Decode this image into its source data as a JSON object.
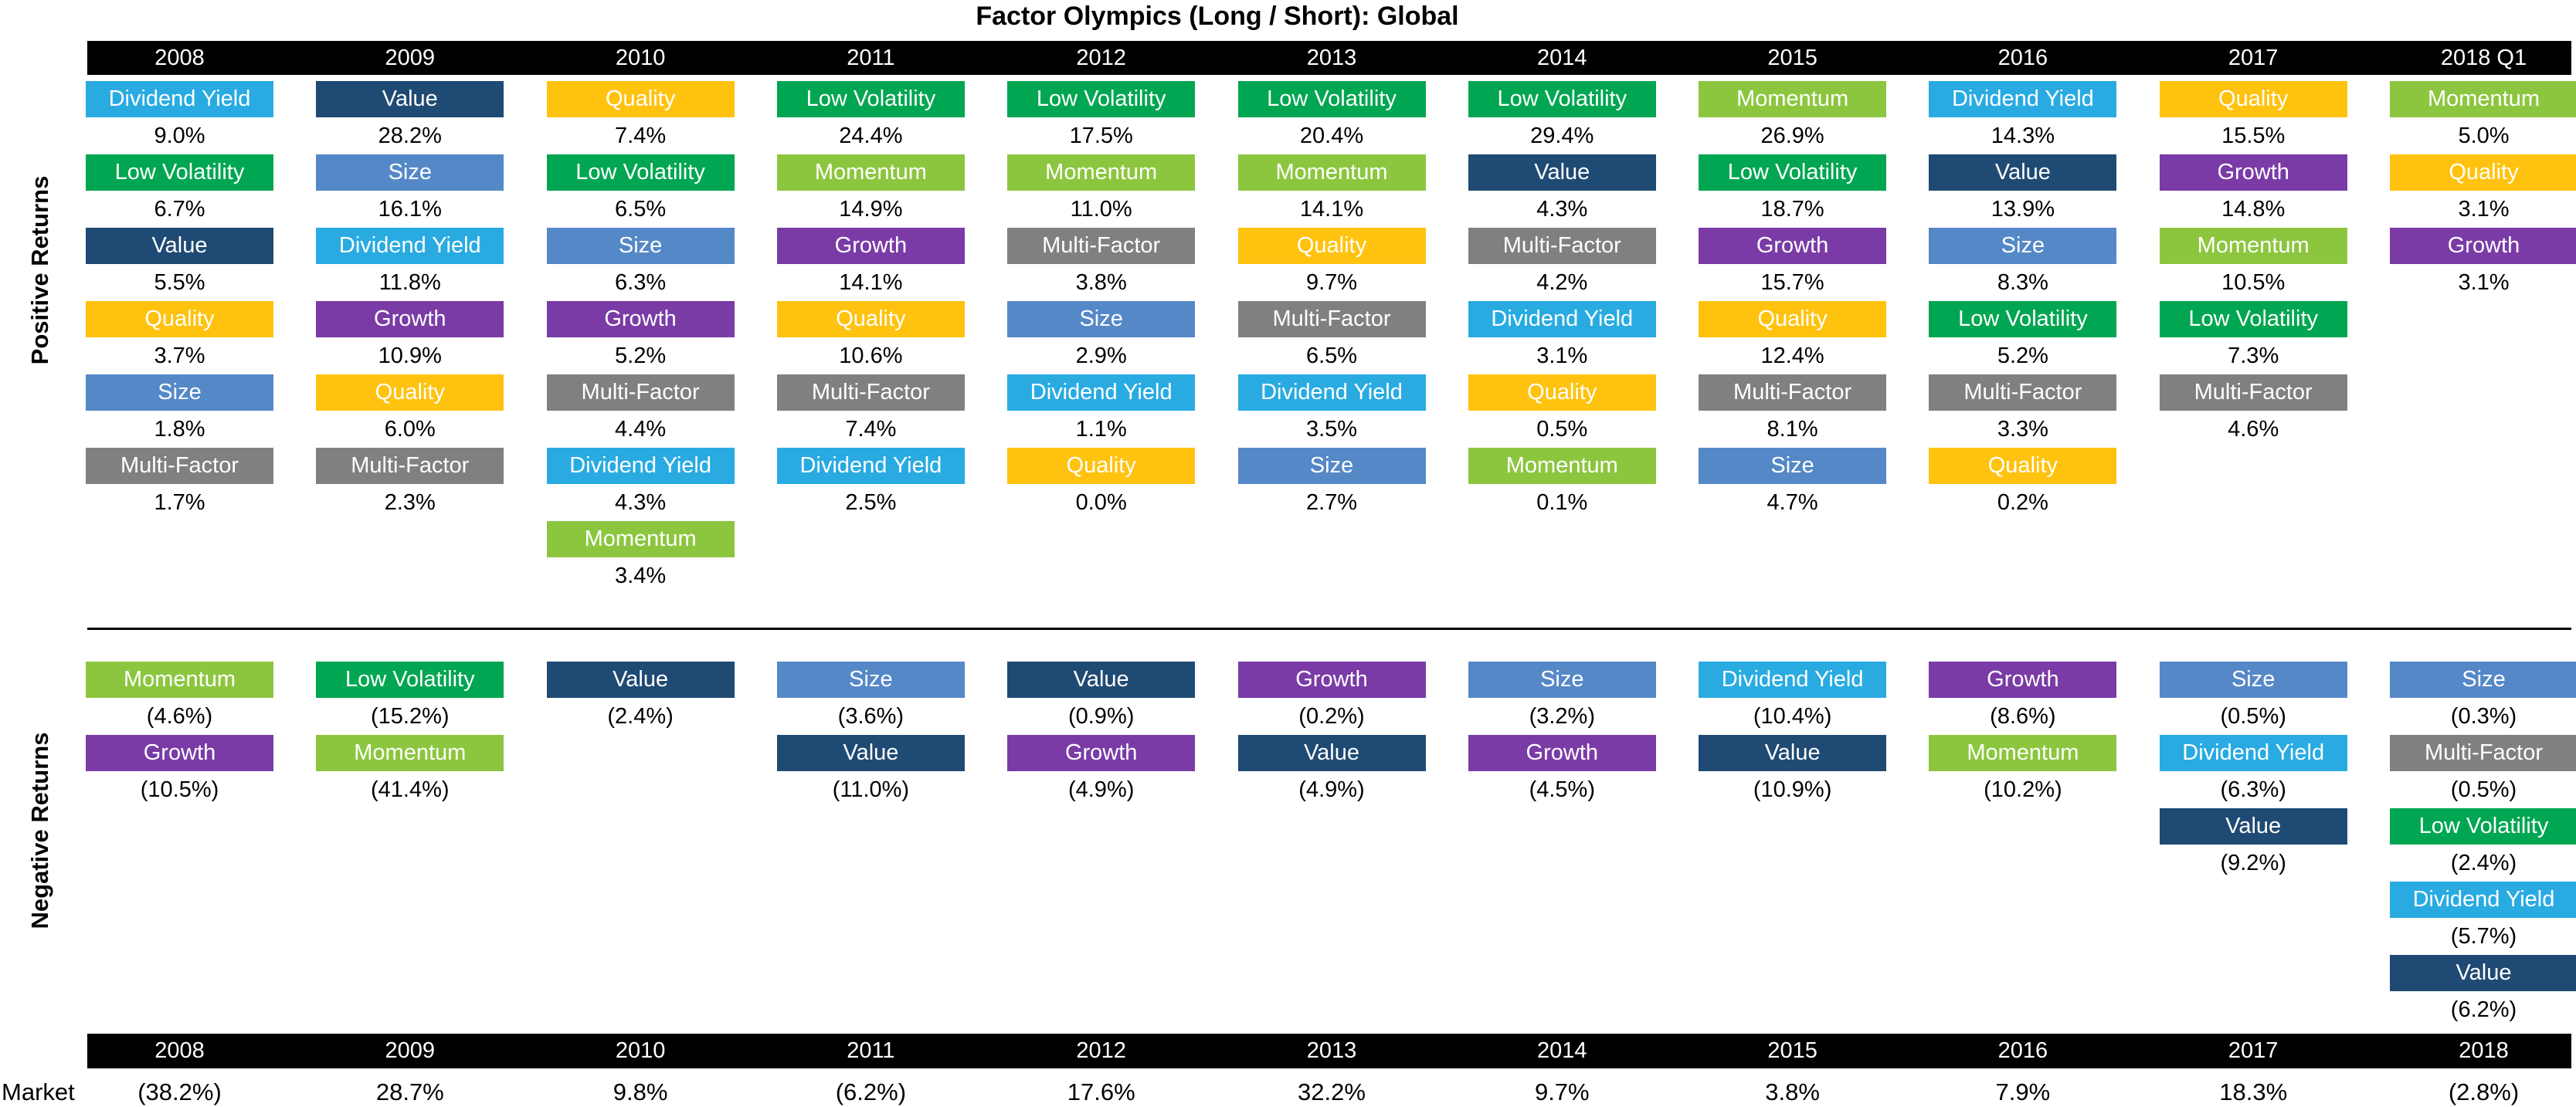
{
  "chart_data": {
    "type": "table",
    "title": "Factor Olympics (Long / Short): Global",
    "section_labels": {
      "positive": "Positive Returns",
      "negative": "Negative Returns"
    },
    "market_row_label": "Market",
    "legend_position": "none",
    "grid": false,
    "colors": {
      "axis_bar_background": "#000000",
      "axis_bar_text": "#FFFFFF",
      "tile_text": "#FFFFFF",
      "value_text": "#000000",
      "divider": "#000000",
      "background": "#FFFFFF"
    },
    "factor_colors": {
      "Dividend Yield": "#29ABE2",
      "Low Volatility": "#00A651",
      "Value": "#1F4A73",
      "Quality": "#FFC20E",
      "Size": "#5588C7",
      "Multi-Factor": "#808080",
      "Growth": "#7A3BA6",
      "Momentum": "#8CC63F"
    },
    "columns": [
      {
        "year_top": "2008",
        "year_bottom": "2008",
        "market": "(38.2%)",
        "positive": [
          {
            "factor": "Dividend Yield",
            "value": "9.0%"
          },
          {
            "factor": "Low Volatility",
            "value": "6.7%"
          },
          {
            "factor": "Value",
            "value": "5.5%"
          },
          {
            "factor": "Quality",
            "value": "3.7%"
          },
          {
            "factor": "Size",
            "value": "1.8%"
          },
          {
            "factor": "Multi-Factor",
            "value": "1.7%"
          }
        ],
        "negative": [
          {
            "factor": "Momentum",
            "value": "(4.6%)"
          },
          {
            "factor": "Growth",
            "value": "(10.5%)"
          }
        ]
      },
      {
        "year_top": "2009",
        "year_bottom": "2009",
        "market": "28.7%",
        "positive": [
          {
            "factor": "Value",
            "value": "28.2%"
          },
          {
            "factor": "Size",
            "value": "16.1%"
          },
          {
            "factor": "Dividend Yield",
            "value": "11.8%"
          },
          {
            "factor": "Growth",
            "value": "10.9%"
          },
          {
            "factor": "Quality",
            "value": "6.0%"
          },
          {
            "factor": "Multi-Factor",
            "value": "2.3%"
          }
        ],
        "negative": [
          {
            "factor": "Low Volatility",
            "value": "(15.2%)"
          },
          {
            "factor": "Momentum",
            "value": "(41.4%)"
          }
        ]
      },
      {
        "year_top": "2010",
        "year_bottom": "2010",
        "market": "9.8%",
        "positive": [
          {
            "factor": "Quality",
            "value": "7.4%"
          },
          {
            "factor": "Low Volatility",
            "value": "6.5%"
          },
          {
            "factor": "Size",
            "value": "6.3%"
          },
          {
            "factor": "Growth",
            "value": "5.2%"
          },
          {
            "factor": "Multi-Factor",
            "value": "4.4%"
          },
          {
            "factor": "Dividend Yield",
            "value": "4.3%"
          },
          {
            "factor": "Momentum",
            "value": "3.4%"
          }
        ],
        "negative": [
          {
            "factor": "Value",
            "value": "(2.4%)"
          }
        ]
      },
      {
        "year_top": "2011",
        "year_bottom": "2011",
        "market": "(6.2%)",
        "positive": [
          {
            "factor": "Low Volatility",
            "value": "24.4%"
          },
          {
            "factor": "Momentum",
            "value": "14.9%"
          },
          {
            "factor": "Growth",
            "value": "14.1%"
          },
          {
            "factor": "Quality",
            "value": "10.6%"
          },
          {
            "factor": "Multi-Factor",
            "value": "7.4%"
          },
          {
            "factor": "Dividend Yield",
            "value": "2.5%"
          }
        ],
        "negative": [
          {
            "factor": "Size",
            "value": "(3.6%)"
          },
          {
            "factor": "Value",
            "value": "(11.0%)"
          }
        ]
      },
      {
        "year_top": "2012",
        "year_bottom": "2012",
        "market": "17.6%",
        "positive": [
          {
            "factor": "Low Volatility",
            "value": "17.5%"
          },
          {
            "factor": "Momentum",
            "value": "11.0%"
          },
          {
            "factor": "Multi-Factor",
            "value": "3.8%"
          },
          {
            "factor": "Size",
            "value": "2.9%"
          },
          {
            "factor": "Dividend Yield",
            "value": "1.1%"
          },
          {
            "factor": "Quality",
            "value": "0.0%"
          }
        ],
        "negative": [
          {
            "factor": "Value",
            "value": "(0.9%)"
          },
          {
            "factor": "Growth",
            "value": "(4.9%)"
          }
        ]
      },
      {
        "year_top": "2013",
        "year_bottom": "2013",
        "market": "32.2%",
        "positive": [
          {
            "factor": "Low Volatility",
            "value": "20.4%"
          },
          {
            "factor": "Momentum",
            "value": "14.1%"
          },
          {
            "factor": "Quality",
            "value": "9.7%"
          },
          {
            "factor": "Multi-Factor",
            "value": "6.5%"
          },
          {
            "factor": "Dividend Yield",
            "value": "3.5%"
          },
          {
            "factor": "Size",
            "value": "2.7%"
          }
        ],
        "negative": [
          {
            "factor": "Growth",
            "value": "(0.2%)"
          },
          {
            "factor": "Value",
            "value": "(4.9%)"
          }
        ]
      },
      {
        "year_top": "2014",
        "year_bottom": "2014",
        "market": "9.7%",
        "positive": [
          {
            "factor": "Low Volatility",
            "value": "29.4%"
          },
          {
            "factor": "Value",
            "value": "4.3%"
          },
          {
            "factor": "Multi-Factor",
            "value": "4.2%"
          },
          {
            "factor": "Dividend Yield",
            "value": "3.1%"
          },
          {
            "factor": "Quality",
            "value": "0.5%"
          },
          {
            "factor": "Momentum",
            "value": "0.1%"
          }
        ],
        "negative": [
          {
            "factor": "Size",
            "value": "(3.2%)"
          },
          {
            "factor": "Growth",
            "value": "(4.5%)"
          }
        ]
      },
      {
        "year_top": "2015",
        "year_bottom": "2015",
        "market": "3.8%",
        "positive": [
          {
            "factor": "Momentum",
            "value": "26.9%"
          },
          {
            "factor": "Low Volatility",
            "value": "18.7%"
          },
          {
            "factor": "Growth",
            "value": "15.7%"
          },
          {
            "factor": "Quality",
            "value": "12.4%"
          },
          {
            "factor": "Multi-Factor",
            "value": "8.1%"
          },
          {
            "factor": "Size",
            "value": "4.7%"
          }
        ],
        "negative": [
          {
            "factor": "Dividend Yield",
            "value": "(10.4%)"
          },
          {
            "factor": "Value",
            "value": "(10.9%)"
          }
        ]
      },
      {
        "year_top": "2016",
        "year_bottom": "2016",
        "market": "7.9%",
        "positive": [
          {
            "factor": "Dividend Yield",
            "value": "14.3%"
          },
          {
            "factor": "Value",
            "value": "13.9%"
          },
          {
            "factor": "Size",
            "value": "8.3%"
          },
          {
            "factor": "Low Volatility",
            "value": "5.2%"
          },
          {
            "factor": "Multi-Factor",
            "value": "3.3%"
          },
          {
            "factor": "Quality",
            "value": "0.2%"
          }
        ],
        "negative": [
          {
            "factor": "Growth",
            "value": "(8.6%)"
          },
          {
            "factor": "Momentum",
            "value": "(10.2%)"
          }
        ]
      },
      {
        "year_top": "2017",
        "year_bottom": "2017",
        "market": "18.3%",
        "positive": [
          {
            "factor": "Quality",
            "value": "15.5%"
          },
          {
            "factor": "Growth",
            "value": "14.8%"
          },
          {
            "factor": "Momentum",
            "value": "10.5%"
          },
          {
            "factor": "Low Volatility",
            "value": "7.3%"
          },
          {
            "factor": "Multi-Factor",
            "value": "4.6%"
          }
        ],
        "negative": [
          {
            "factor": "Size",
            "value": "(0.5%)"
          },
          {
            "factor": "Dividend Yield",
            "value": "(6.3%)"
          },
          {
            "factor": "Value",
            "value": "(9.2%)"
          }
        ]
      },
      {
        "year_top": "2018 Q1",
        "year_bottom": "2018",
        "market": "(2.8%)",
        "positive": [
          {
            "factor": "Momentum",
            "value": "5.0%"
          },
          {
            "factor": "Quality",
            "value": "3.1%"
          },
          {
            "factor": "Growth",
            "value": "3.1%"
          }
        ],
        "negative": [
          {
            "factor": "Size",
            "value": "(0.3%)"
          },
          {
            "factor": "Multi-Factor",
            "value": "(0.5%)"
          },
          {
            "factor": "Low Volatility",
            "value": "(2.4%)"
          },
          {
            "factor": "Dividend Yield",
            "value": "(5.7%)"
          },
          {
            "factor": "Value",
            "value": "(6.2%)"
          }
        ]
      }
    ]
  }
}
